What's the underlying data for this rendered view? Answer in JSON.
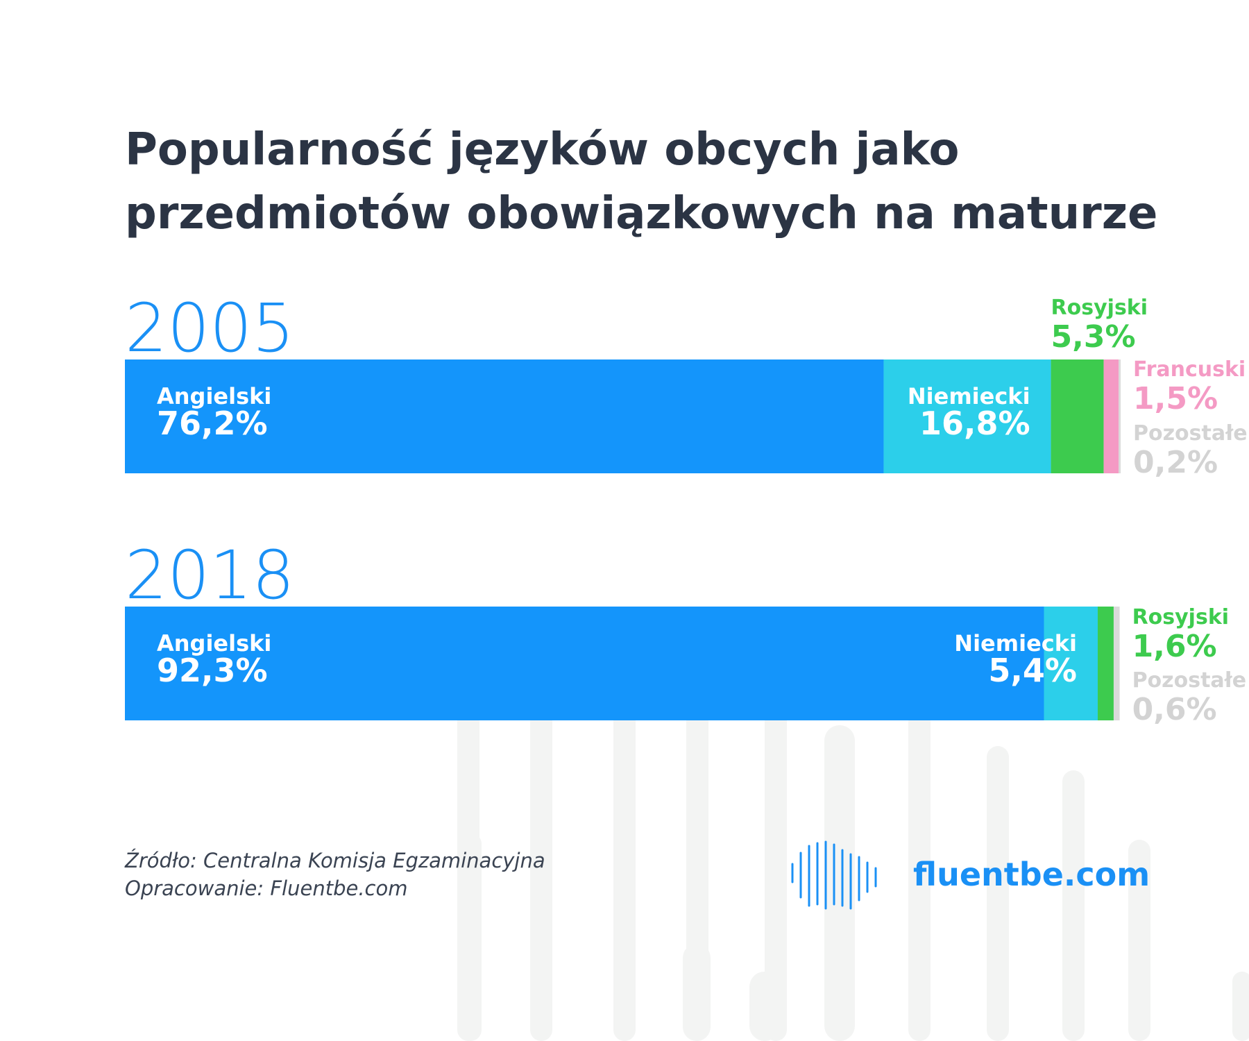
{
  "title": {
    "line1": "Popularność języków obcych jako",
    "line2": "przedmiotów obowiązkowych na maturze"
  },
  "colors": {
    "english": "#1495fb",
    "german": "#2ccfea",
    "russian": "#3dcb4e",
    "french": "#f49ac4",
    "other": "#dadada",
    "year": "#1a90f5",
    "title": "#2b3444",
    "brand": "#1a90f5"
  },
  "chart_data": {
    "type": "bar",
    "orientation": "horizontal",
    "stacked": true,
    "categories": [
      "2005",
      "2018"
    ],
    "xlim": [
      0,
      100
    ],
    "series": [
      {
        "name": "Angielski",
        "values": [
          76.2,
          92.3
        ],
        "labels": [
          "76,2%",
          "92,3%"
        ],
        "color": "#1495fb"
      },
      {
        "name": "Niemiecki",
        "values": [
          16.8,
          5.4
        ],
        "labels": [
          "16,8%",
          "5,4%"
        ],
        "color": "#2ccfea"
      },
      {
        "name": "Rosyjski",
        "values": [
          5.3,
          1.6
        ],
        "labels": [
          "5,3%",
          "1,6%"
        ],
        "color": "#3dcb4e"
      },
      {
        "name": "Francuski",
        "values": [
          1.5,
          null
        ],
        "labels": [
          "1,5%",
          null
        ],
        "color": "#f49ac4"
      },
      {
        "name": "Pozostałe",
        "values": [
          0.2,
          0.6
        ],
        "labels": [
          "0,2%",
          "0,6%"
        ],
        "color": "#dadada"
      }
    ]
  },
  "footer": {
    "source": "Źródło: Centralna Komisja Egzaminacyjna",
    "author": "Opracowanie: Fluentbe.com"
  },
  "logo": {
    "icon": "soundwave-map-icon",
    "text": "fluentbe.com"
  }
}
